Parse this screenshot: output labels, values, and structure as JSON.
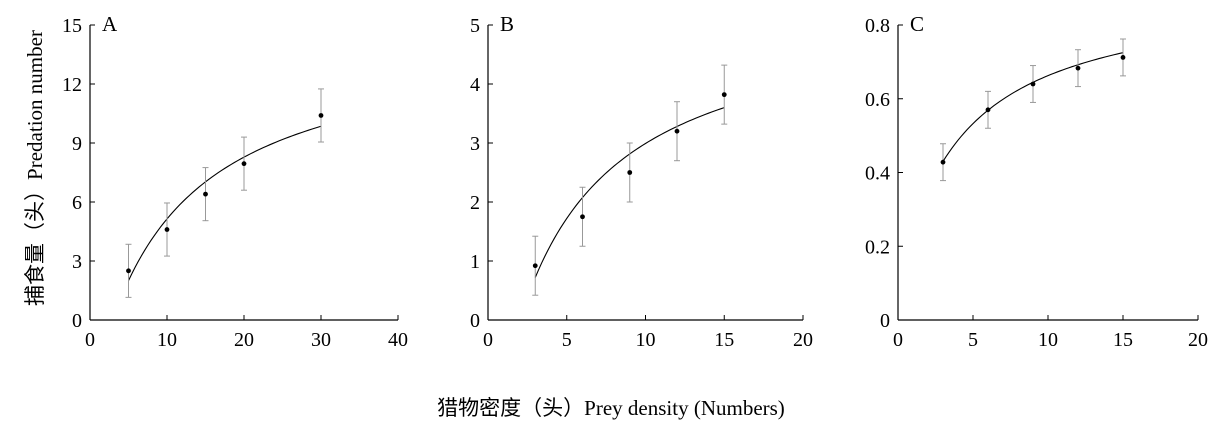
{
  "figure": {
    "ylabel": "捕食量（头）Predation number",
    "xlabel": "猎物密度（头）Prey density (Numbers)"
  },
  "chart_data": [
    {
      "type": "scatter",
      "panel": "A",
      "xlim": [
        0,
        40
      ],
      "ylim": [
        0,
        15
      ],
      "xticks": [
        0,
        10,
        20,
        30,
        40
      ],
      "yticks": [
        0,
        3,
        6,
        9,
        12,
        15
      ],
      "xtick_labels": [
        "0",
        "10",
        "20",
        "30",
        "40"
      ],
      "ytick_labels": [
        "0",
        "3",
        "6",
        "9",
        "12",
        "15"
      ],
      "points": [
        {
          "x": 5,
          "y": 2.5,
          "err": 1.35
        },
        {
          "x": 10,
          "y": 4.6,
          "err": 1.35
        },
        {
          "x": 15,
          "y": 6.4,
          "err": 1.35
        },
        {
          "x": 20,
          "y": 7.95,
          "err": 1.35
        },
        {
          "x": 30,
          "y": 10.4,
          "err": 1.35
        }
      ],
      "curve": {
        "x_start": 5,
        "x_end": 30,
        "y_start": 2.0,
        "y_end": 9.85,
        "shape": "concave"
      },
      "grid": false,
      "legend": "none"
    },
    {
      "type": "scatter",
      "panel": "B",
      "xlim": [
        0,
        20
      ],
      "ylim": [
        0,
        5
      ],
      "xticks": [
        0,
        5,
        10,
        15,
        20
      ],
      "yticks": [
        0,
        1,
        2,
        3,
        4,
        5
      ],
      "xtick_labels": [
        "0",
        "5",
        "10",
        "15",
        "20"
      ],
      "ytick_labels": [
        "0",
        "1",
        "2",
        "3",
        "4",
        "5"
      ],
      "points": [
        {
          "x": 3,
          "y": 0.92,
          "err": 0.5
        },
        {
          "x": 6,
          "y": 1.75,
          "err": 0.5
        },
        {
          "x": 9,
          "y": 2.5,
          "err": 0.5
        },
        {
          "x": 12,
          "y": 3.2,
          "err": 0.5
        },
        {
          "x": 15,
          "y": 3.82,
          "err": 0.5
        }
      ],
      "curve": {
        "x_start": 3,
        "x_end": 15,
        "y_start": 0.72,
        "y_end": 3.6,
        "shape": "concave"
      },
      "grid": false,
      "legend": "none"
    },
    {
      "type": "scatter",
      "panel": "C",
      "xlim": [
        0,
        20
      ],
      "ylim": [
        0,
        0.8
      ],
      "xticks": [
        0,
        5,
        10,
        15,
        20
      ],
      "yticks": [
        0,
        0.2,
        0.4,
        0.6,
        0.8
      ],
      "xtick_labels": [
        "0",
        "5",
        "10",
        "15",
        "20"
      ],
      "ytick_labels": [
        "0",
        "0.2",
        "0.4",
        "0.6",
        "0.8"
      ],
      "points": [
        {
          "x": 3,
          "y": 0.428,
          "err": 0.05
        },
        {
          "x": 6,
          "y": 0.57,
          "err": 0.05
        },
        {
          "x": 9,
          "y": 0.64,
          "err": 0.05
        },
        {
          "x": 12,
          "y": 0.683,
          "err": 0.05
        },
        {
          "x": 15,
          "y": 0.712,
          "err": 0.05
        }
      ],
      "curve": {
        "x_start": 3,
        "x_end": 15,
        "y_start": 0.43,
        "y_end": 0.725,
        "shape": "concave"
      },
      "grid": false,
      "legend": "none"
    }
  ]
}
